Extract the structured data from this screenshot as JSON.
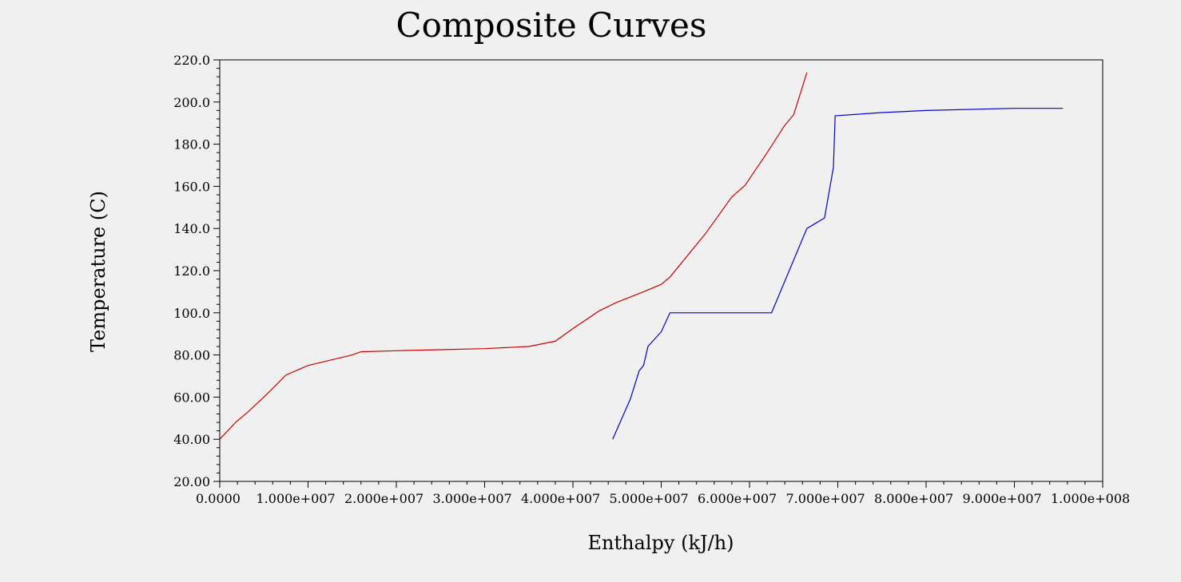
{
  "chart_data": {
    "type": "line",
    "title": "Composite Curves",
    "xlabel": "Enthalpy (kJ/h)",
    "ylabel": "Temperature (C)",
    "xlim": [
      0,
      100000000
    ],
    "ylim": [
      20,
      220
    ],
    "x_tick_values": [
      0,
      10000000,
      20000000,
      30000000,
      40000000,
      50000000,
      60000000,
      70000000,
      80000000,
      90000000,
      100000000
    ],
    "x_tick_labels": [
      "0.0000",
      "1.000e+007",
      "2.000e+007",
      "3.000e+007",
      "4.000e+007",
      "5.000e+007",
      "6.000e+007",
      "7.000e+007",
      "8.000e+007",
      "9.000e+007",
      "1.000e+008"
    ],
    "y_tick_values": [
      20,
      40,
      60,
      80,
      100,
      120,
      140,
      160,
      180,
      200,
      220
    ],
    "y_tick_labels": [
      "20.00",
      "40.00",
      "60.00",
      "80.00",
      "100.0",
      "120.0",
      "140.0",
      "160.0",
      "180.0",
      "200.0",
      "220.0"
    ],
    "grid": false,
    "legend": "none",
    "series": [
      {
        "color": "#cc0000",
        "x": [
          0,
          1800000,
          3200000,
          5500000,
          7500000,
          10000000,
          12500000,
          15000000,
          16000000,
          20000000,
          25000000,
          30000000,
          35000000,
          38000000,
          40000000,
          43000000,
          45000000,
          48000000,
          50000000,
          51000000,
          55000000,
          58000000,
          59500000,
          62000000,
          64000000,
          65000000,
          66500000
        ],
        "y": [
          40,
          48,
          53,
          62,
          70.5,
          75,
          77.5,
          80,
          81.5,
          82,
          82.5,
          83,
          84,
          86.5,
          92.5,
          101,
          105,
          110,
          113.5,
          117,
          137.5,
          155,
          160.5,
          176,
          189,
          194,
          214
        ]
      },
      {
        "color": "#0000cc",
        "x": [
          44500000,
          46500000,
          47500000,
          48000000,
          48500000,
          50000000,
          51000000,
          58000000,
          62500000,
          66500000,
          68500000,
          69500000,
          69700000,
          75000000,
          80000000,
          90000000,
          95500000
        ],
        "y": [
          40,
          59,
          72.5,
          75,
          84,
          91,
          100,
          100,
          100,
          140,
          145,
          169,
          193.5,
          195,
          196,
          197,
          197
        ]
      }
    ]
  }
}
